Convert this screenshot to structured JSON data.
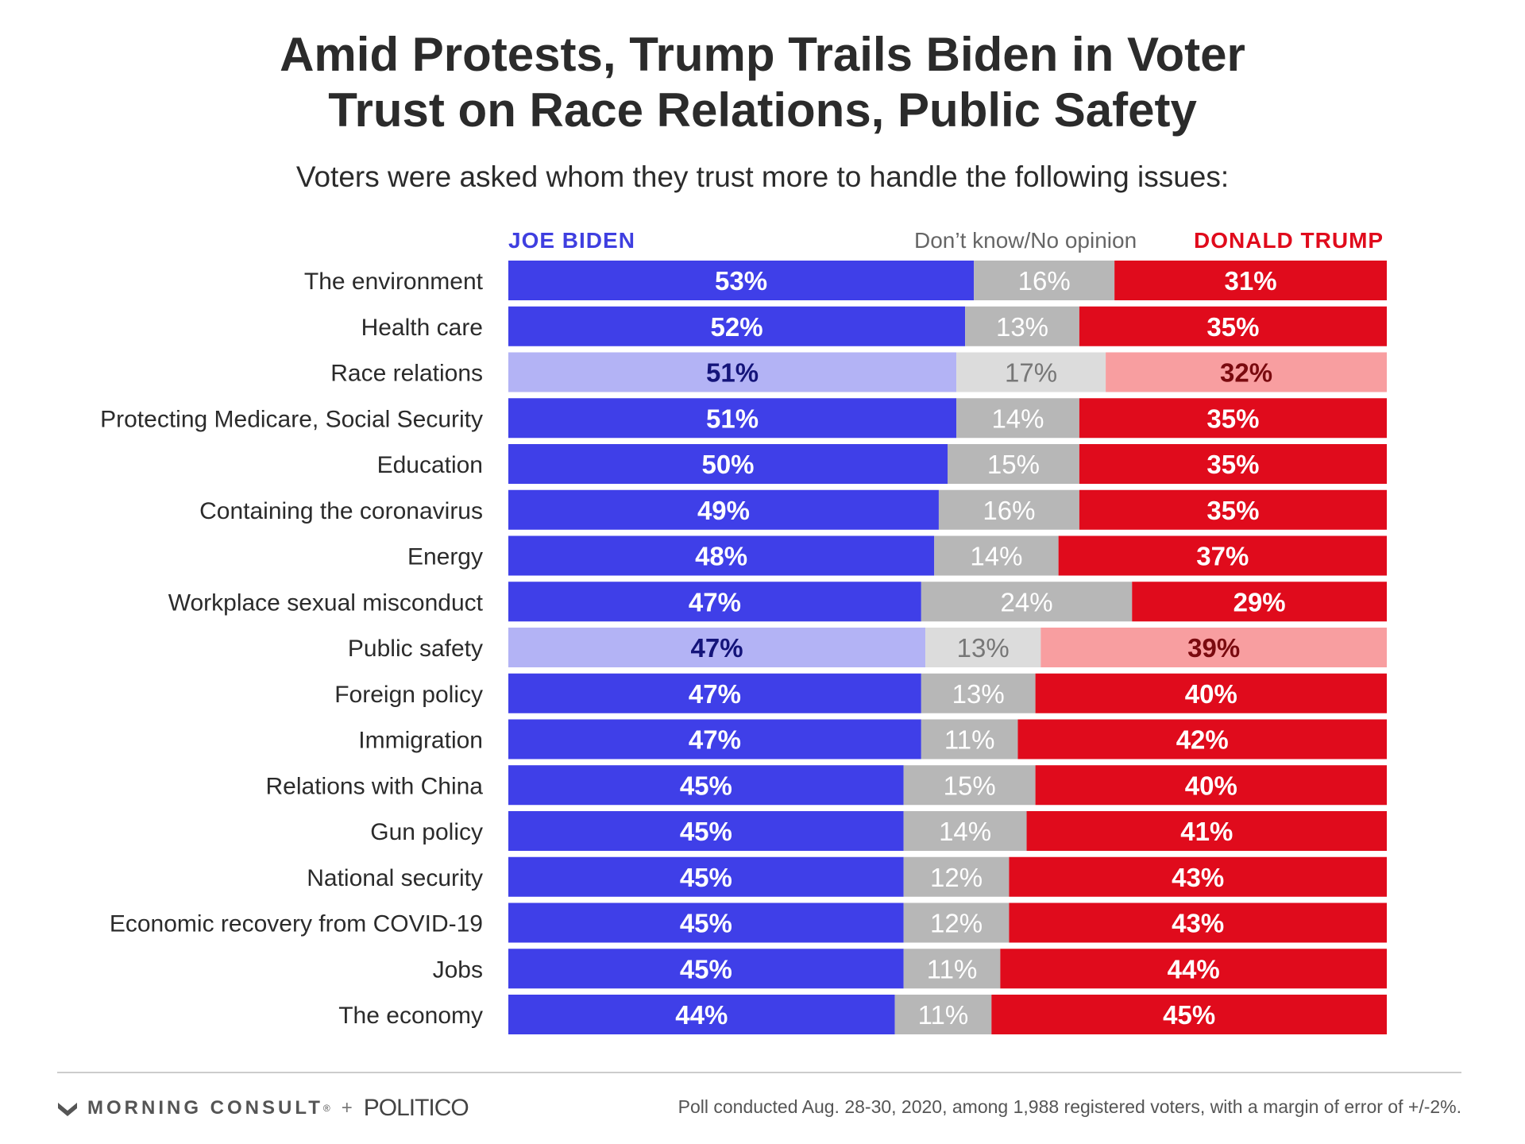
{
  "title_line1": "Amid Protests, Trump Trails Biden in Voter",
  "title_line2": "Trust on Race Relations, Public Safety",
  "subtitle": "Voters were asked whom they trust more to handle the following issues:",
  "legend": {
    "biden": "JOE BIDEN",
    "dont_know": "Don’t know/No opinion",
    "trump": "DONALD TRUMP"
  },
  "colors": {
    "biden": "#3f3fe8",
    "biden_highlight": "#b3b3f5",
    "dont_know": "#b7b7b7",
    "dont_know_highlight": "#dcdcdc",
    "trump": "#e00b1c",
    "trump_highlight": "#f89ea0",
    "label_on_dark": "#ffffff",
    "biden_label_highlight": "#14147a",
    "trump_label_highlight": "#7a0a0f",
    "dk_label_highlight": "#777777"
  },
  "chart_data": {
    "type": "bar",
    "stacked": true,
    "orientation": "horizontal",
    "categories": [
      "The environment",
      "Health care",
      "Race relations",
      "Protecting Medicare, Social Security",
      "Education",
      "Containing the coronavirus",
      "Energy",
      "Workplace sexual misconduct",
      "Public safety",
      "Foreign policy",
      "Immigration",
      "Relations with China",
      "Gun policy",
      "National security",
      "Economic recovery from COVID-19",
      "Jobs",
      "The economy"
    ],
    "series": [
      {
        "name": "JOE BIDEN",
        "values": [
          53,
          52,
          51,
          51,
          50,
          49,
          48,
          47,
          47,
          47,
          47,
          45,
          45,
          45,
          45,
          45,
          44
        ]
      },
      {
        "name": "Don’t know/No opinion",
        "values": [
          16,
          13,
          17,
          14,
          15,
          16,
          14,
          24,
          13,
          13,
          11,
          15,
          14,
          12,
          12,
          11,
          11
        ]
      },
      {
        "name": "DONALD TRUMP",
        "values": [
          31,
          35,
          32,
          35,
          35,
          35,
          37,
          29,
          39,
          40,
          42,
          40,
          41,
          43,
          43,
          44,
          45
        ]
      }
    ],
    "highlighted_categories": [
      "Race relations",
      "Public safety"
    ],
    "value_suffix": "%",
    "xlim": [
      0,
      100
    ],
    "grid": false,
    "legend_position": "top"
  },
  "footer": {
    "brand_left": "MORNING CONSULT",
    "brand_trademark": "®",
    "plus": "+",
    "brand_right": "POLITICO",
    "note": "Poll conducted Aug. 28-30, 2020, among 1,988 registered voters, with a margin of error of +/-2%."
  }
}
